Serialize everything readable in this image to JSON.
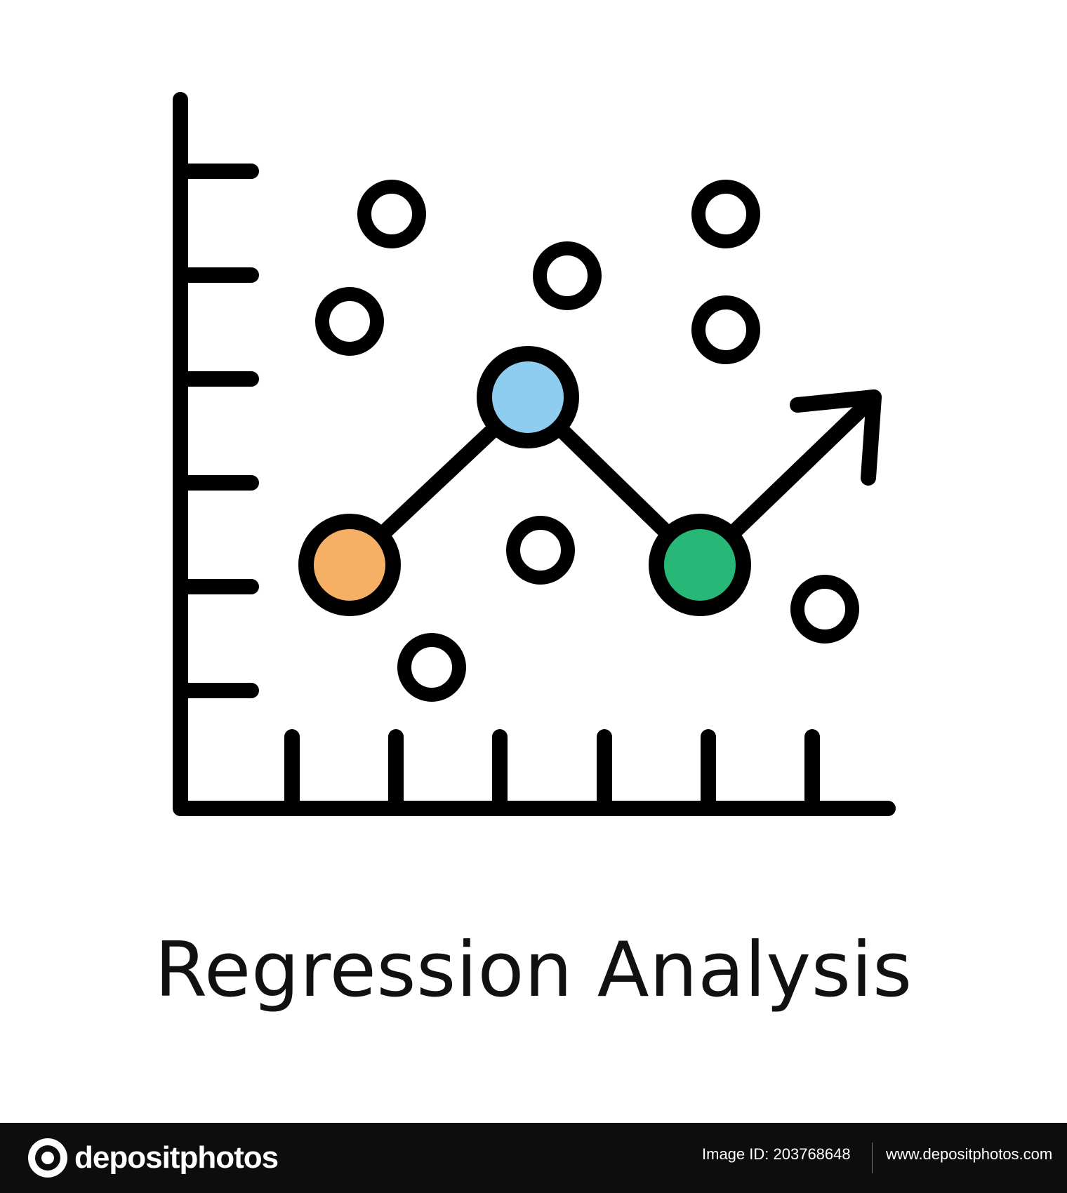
{
  "illustration": {
    "caption": "Regression Analysis",
    "colors": {
      "stroke": "#000000",
      "point_left": "#F5B066",
      "point_peak": "#8ECDF0",
      "point_right": "#27B877"
    },
    "icons": [
      "chart-axes-icon",
      "trend-arrow-icon",
      "scatter-dot-icon"
    ]
  },
  "footer": {
    "brand": "depositphotos",
    "image_id_label": "Image ID:",
    "image_id": "203768648",
    "url": "www.depositphotos.com"
  }
}
